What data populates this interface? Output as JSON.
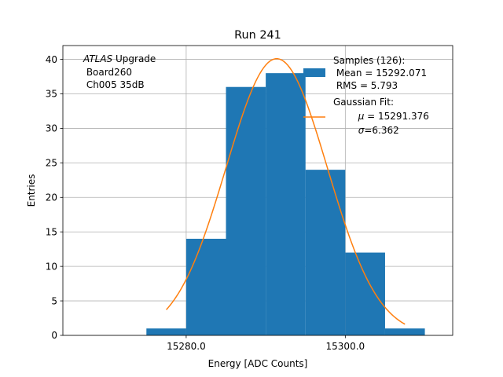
{
  "chart_data": {
    "type": "bar",
    "title": "Run 241",
    "xlabel": "Energy [ADC Counts]",
    "ylabel": "Entries",
    "xlim": [
      15264.5,
      15313.5
    ],
    "ylim": [
      0,
      42
    ],
    "grid": true,
    "xticks": [
      15280,
      15300
    ],
    "xtick_labels": [
      "15280.0",
      "15300.0"
    ],
    "yticks": [
      0,
      5,
      10,
      15,
      20,
      25,
      30,
      35,
      40
    ],
    "ytick_labels": [
      "0",
      "5",
      "10",
      "15",
      "20",
      "25",
      "30",
      "35",
      "40"
    ],
    "bins": [
      {
        "x0": 15275,
        "x1": 15280,
        "count": 1
      },
      {
        "x0": 15280,
        "x1": 15285,
        "count": 14
      },
      {
        "x0": 15285,
        "x1": 15290,
        "count": 36
      },
      {
        "x0": 15290,
        "x1": 15295,
        "count": 38
      },
      {
        "x0": 15295,
        "x1": 15300,
        "count": 24
      },
      {
        "x0": 15300,
        "x1": 15305,
        "count": 12
      },
      {
        "x0": 15305,
        "x1": 15310,
        "count": 1
      }
    ],
    "fit": {
      "mu": 15291.376,
      "sigma": 6.362,
      "amplitude": 40.1,
      "x_from": 15277.5,
      "x_to": 15307.5
    },
    "colors": {
      "hist": "#1f77b4",
      "fit": "#ff7f0e",
      "grid": "#b0b0b0"
    },
    "annotation": {
      "italic": "ATLAS",
      "rest": " Upgrade",
      "line2": " Board260",
      "line3": " Ch005 35dB"
    },
    "legend": {
      "position": "upper right",
      "hist_label": [
        "Samples (126):",
        " Mean = 15292.071",
        " RMS = 5.793"
      ],
      "fit_label_title": "Gaussian Fit:",
      "fit_mu_symbol": "μ",
      "fit_mu_value": " = 15291.376",
      "fit_sigma_symbol": "σ",
      "fit_sigma_value": "=6.362"
    }
  }
}
